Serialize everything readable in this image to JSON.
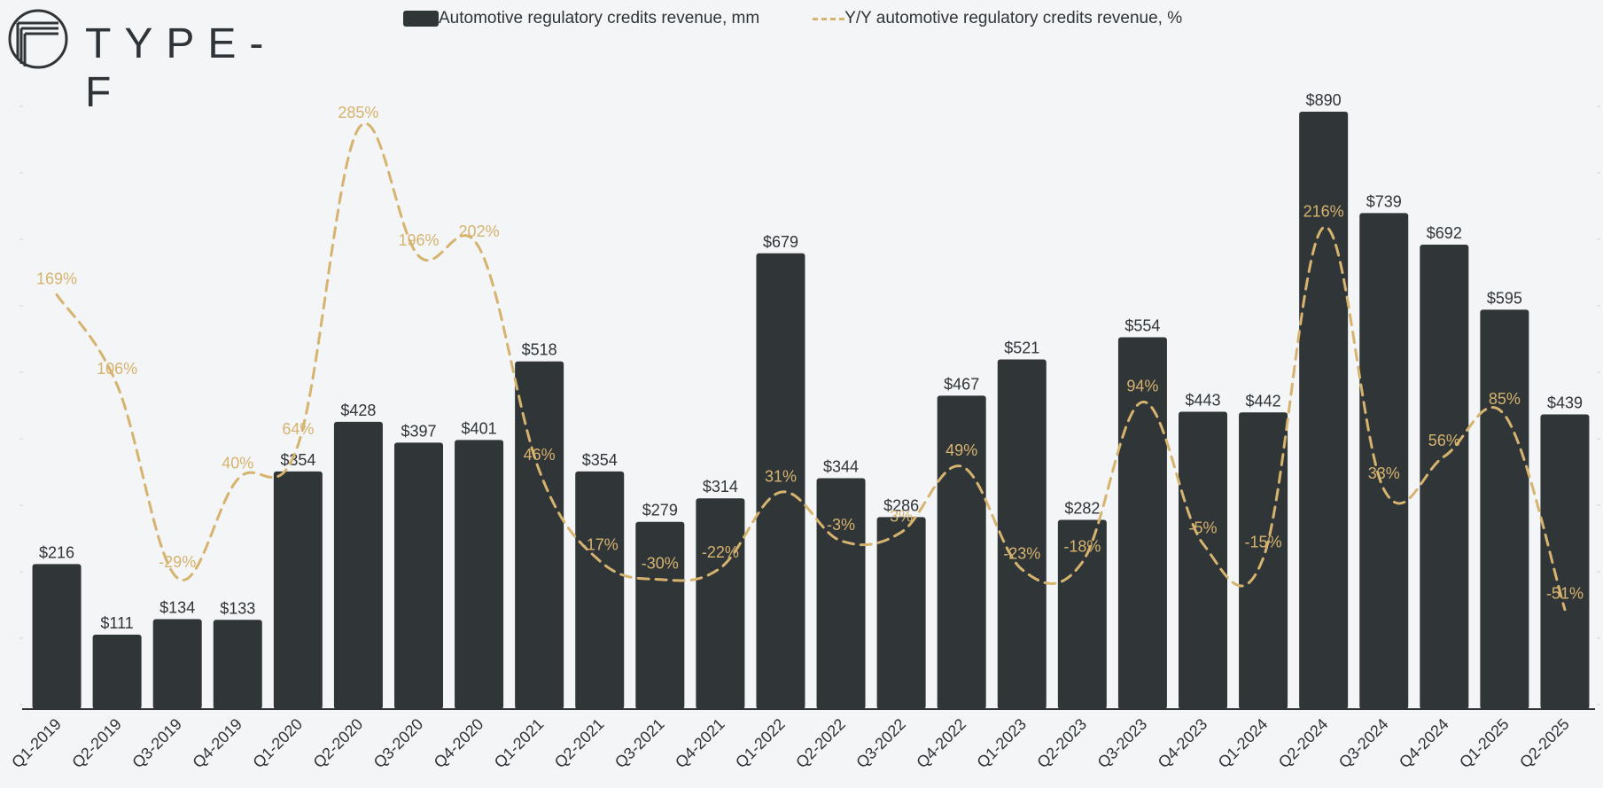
{
  "brand": {
    "name": "TYPE-F"
  },
  "chart_data": {
    "type": "bar",
    "categories": [
      "Q1-2019",
      "Q2-2019",
      "Q3-2019",
      "Q4-2019",
      "Q1-2020",
      "Q2-2020",
      "Q3-2020",
      "Q4-2020",
      "Q1-2021",
      "Q2-2021",
      "Q3-2021",
      "Q4-2021",
      "Q1-2022",
      "Q2-2022",
      "Q3-2022",
      "Q4-2022",
      "Q1-2023",
      "Q2-2023",
      "Q3-2023",
      "Q4-2023",
      "Q1-2024",
      "Q2-2024",
      "Q3-2024",
      "Q4-2024",
      "Q1-2025",
      "Q2-2025"
    ],
    "series": [
      {
        "name": "Automotive regulatory credits revenue, mm",
        "type": "bar",
        "color": "#303538",
        "values": [
          216,
          111,
          134,
          133,
          354,
          428,
          397,
          401,
          518,
          354,
          279,
          314,
          679,
          344,
          286,
          467,
          521,
          282,
          554,
          443,
          442,
          890,
          739,
          692,
          595,
          439
        ],
        "labels": [
          "$216",
          "$111",
          "$134",
          "$133",
          "$354",
          "$428",
          "$397",
          "$401",
          "$518",
          "$354",
          "$279",
          "$314",
          "$679",
          "$344",
          "$286",
          "$467",
          "$521",
          "$282",
          "$554",
          "$443",
          "$442",
          "$890",
          "$739",
          "$692",
          "$595",
          "$439"
        ]
      },
      {
        "name": "Y/Y automotive regulatory credits revenue, %",
        "type": "line",
        "style": "dashed",
        "color": "#d6b36e",
        "values": [
          169,
          106,
          -29,
          40,
          64,
          285,
          196,
          202,
          46,
          -17,
          -30,
          -22,
          31,
          -3,
          3,
          49,
          -23,
          -18,
          94,
          -5,
          -15,
          216,
          33,
          56,
          85,
          -51
        ],
        "labels": [
          "169%",
          "106%",
          "-29%",
          "40%",
          "64%",
          "285%",
          "196%",
          "202%",
          "46%",
          "-17%",
          "-30%",
          "-22%",
          "31%",
          "-3%",
          "3%",
          "49%",
          "-23%",
          "-18%",
          "94%",
          "-5%",
          "-15%",
          "216%",
          "33%",
          "56%",
          "85%",
          "-51%"
        ]
      }
    ],
    "ylim_bar": [
      0,
      890
    ],
    "legend_position": "top-center",
    "grid": false
  }
}
